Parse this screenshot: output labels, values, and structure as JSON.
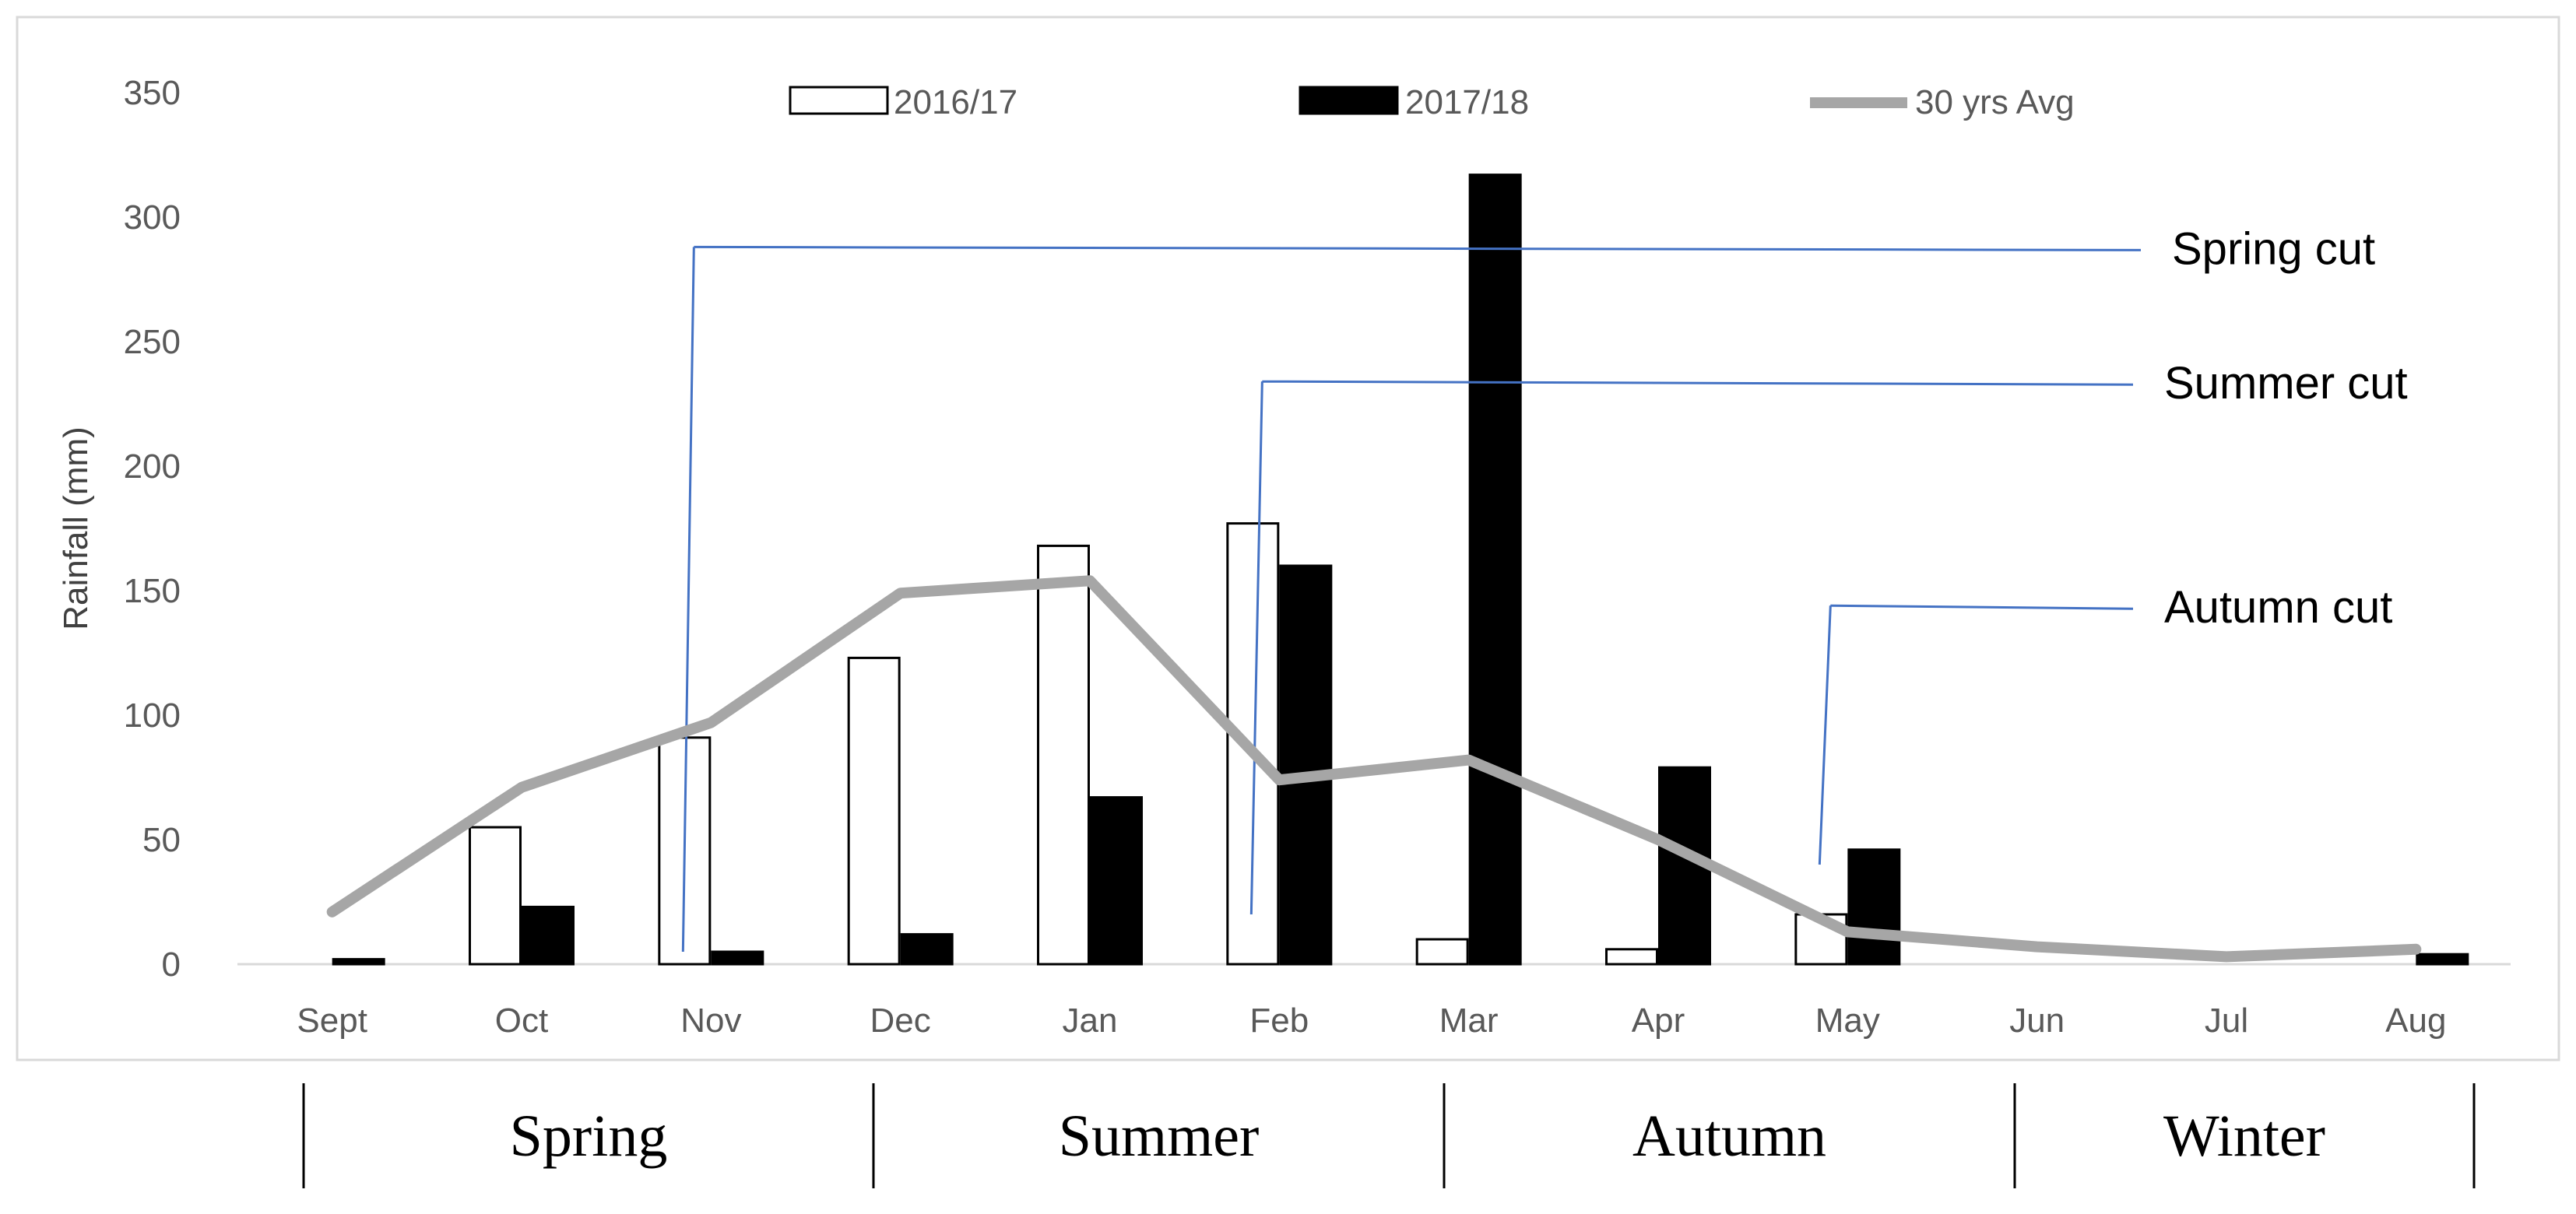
{
  "chart_data": {
    "type": "bar",
    "categories": [
      "Sept",
      "Oct",
      "Nov",
      "Dec",
      "Jan",
      "Feb",
      "Mar",
      "Apr",
      "May",
      "Jun",
      "Jul",
      "Aug"
    ],
    "series": [
      {
        "name": "2016/17",
        "kind": "bar",
        "color": "#ffffff",
        "values": [
          0,
          55,
          91,
          123,
          168,
          177,
          10,
          6,
          20,
          0,
          0,
          0
        ]
      },
      {
        "name": "2017/18",
        "kind": "bar",
        "color": "#000000",
        "values": [
          2,
          23,
          5,
          12,
          67,
          160,
          317,
          79,
          46,
          0,
          0,
          4
        ]
      },
      {
        "name": "30 yrs Avg",
        "kind": "line",
        "color": "#a6a6a6",
        "values": [
          21,
          71,
          97,
          149,
          154,
          74,
          82,
          50,
          13,
          7,
          3,
          6
        ]
      }
    ],
    "ylabel": "Rainfall (mm)",
    "xlabel": "",
    "ylim": [
      0,
      350
    ],
    "yticks": [
      0,
      50,
      100,
      150,
      200,
      250,
      300,
      350
    ],
    "grid": false,
    "legend": "top",
    "annotations": [
      {
        "label": "Spring cut",
        "month": "Nov",
        "level": 288,
        "drop_to": 5
      },
      {
        "label": "Summer cut",
        "month": "Feb",
        "level": 234,
        "drop_to": 20
      },
      {
        "label": "Autumn cut",
        "month": "May",
        "level": 144,
        "drop_to": 40
      }
    ],
    "seasons": [
      "Spring",
      "Summer",
      "Autumn",
      "Winter"
    ]
  }
}
